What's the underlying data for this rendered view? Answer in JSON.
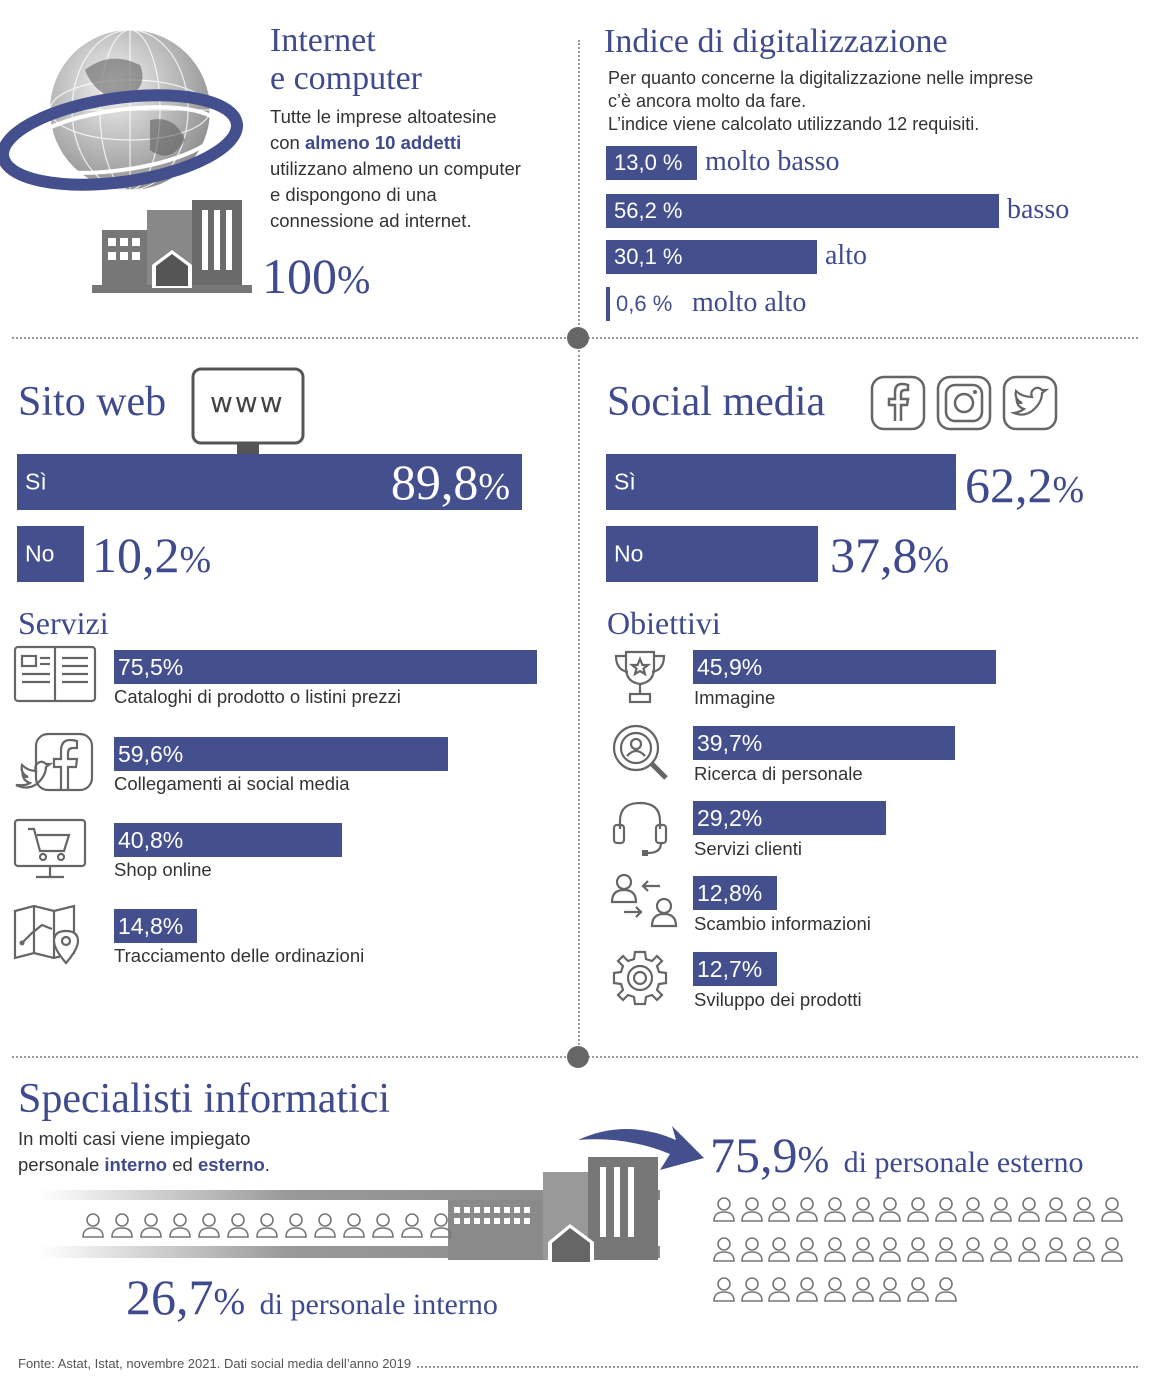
{
  "internet": {
    "title_line1": "Internet",
    "title_line2": "e computer",
    "text_pre": "Tutte le imprese altoatesine",
    "text_con": "con ",
    "text_bold": "almeno 10 addetti",
    "text_line3": "utilizzano almeno un computer",
    "text_line4": "e dispongono di una",
    "text_line5": "connessione ad internet.",
    "value": "100",
    "value_pct": "%",
    "icons": [
      "globe-icon",
      "buildings-icon"
    ]
  },
  "digital_index": {
    "title": "Indice di digitalizzazione",
    "desc1": "Per quanto concerne la digitalizzazione nelle imprese",
    "desc2": "c’è ancora molto da fare.",
    "desc3": "L’indice viene calcolato utilizzando 12 requisiti.",
    "items": [
      {
        "value": "13,0 %",
        "label": "molto basso",
        "fraction": 0.13
      },
      {
        "value": "56,2 %",
        "label": "basso",
        "fraction": 0.562
      },
      {
        "value": "30,1 %",
        "label": "alto",
        "fraction": 0.301
      },
      {
        "value": "0,6 %",
        "label": "molto alto",
        "fraction": 0.006
      }
    ]
  },
  "website": {
    "title": "Sito web",
    "www": "www",
    "yes_label": "Sì",
    "yes_value": "89,8",
    "no_label": "No",
    "no_value": "10,2",
    "pct": "%",
    "services_title": "Servizi",
    "services": [
      {
        "value": "75,5%",
        "label": "Cataloghi di prodotto o listini prezzi",
        "icon": "catalog-icon",
        "fraction": 0.755
      },
      {
        "value": "59,6%",
        "label": "Collegamenti ai social media",
        "icon": "social-links-icon",
        "fraction": 0.596
      },
      {
        "value": "40,8%",
        "label": "Shop online",
        "icon": "shopping-cart-icon",
        "fraction": 0.408
      },
      {
        "value": "14,8%",
        "label": "Tracciamento delle ordinazioni",
        "icon": "map-pin-icon",
        "fraction": 0.148
      }
    ]
  },
  "social": {
    "title": "Social media",
    "icons": [
      "facebook-icon",
      "instagram-icon",
      "twitter-icon"
    ],
    "yes_label": "Sì",
    "yes_value": "62,2",
    "no_label": "No",
    "no_value": "37,8",
    "pct": "%",
    "goals_title": "Obiettivi",
    "goals": [
      {
        "value": "45,9%",
        "label": "Immagine",
        "icon": "trophy-icon",
        "fraction": 0.459
      },
      {
        "value": "39,7%",
        "label": "Ricerca di personale",
        "icon": "person-search-icon",
        "fraction": 0.397
      },
      {
        "value": "29,2%",
        "label": "Servizi clienti",
        "icon": "headset-icon",
        "fraction": 0.292
      },
      {
        "value": "12,8%",
        "label": "Scambio informazioni",
        "icon": "exchange-icon",
        "fraction": 0.128
      },
      {
        "value": "12,7%",
        "label": "Sviluppo dei prodotti",
        "icon": "gear-icon",
        "fraction": 0.127
      }
    ]
  },
  "specialists": {
    "title": "Specialisti informatici",
    "desc1": "In molti casi viene impiegato",
    "desc2_pre": "personale ",
    "desc2_internal": "interno",
    "desc2_mid": " ed ",
    "desc2_external": "esterno",
    "desc2_end": ".",
    "external_value": "75,9",
    "external_label": "di personale esterno",
    "internal_value": "26,7",
    "internal_label": "di personale interno",
    "pct": "%"
  },
  "footer": {
    "source": "Fonte: Astat, Istat, novembre 2021. Dati social media dell’anno 2019"
  }
}
